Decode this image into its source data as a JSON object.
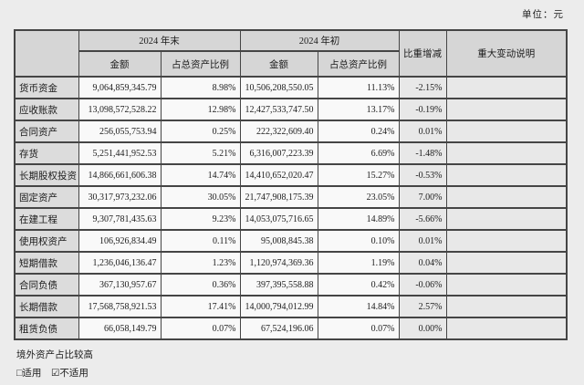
{
  "unit_label": "单位：元",
  "colors": {
    "page_bg": "#ececec",
    "header_bg": "#d6d6d6",
    "label_cell_bg": "#dcdcdc",
    "shaded_cell_bg": "#e8e8e8",
    "numeric_cell_bg": "#f9f9f9",
    "border": "#454545"
  },
  "table": {
    "header": {
      "period_end": "2024 年末",
      "period_start": "2024 年初",
      "amount": "金额",
      "ratio": "占总资产比例",
      "change": "比重增减",
      "explanation": "重大变动说明"
    },
    "rows": [
      {
        "label": "货币资金",
        "end_amount": "9,064,859,345.79",
        "end_ratio": "8.98%",
        "start_amount": "10,506,208,550.05",
        "start_ratio": "11.13%",
        "change": "-2.15%",
        "note": ""
      },
      {
        "label": "应收账款",
        "end_amount": "13,098,572,528.22",
        "end_ratio": "12.98%",
        "start_amount": "12,427,533,747.50",
        "start_ratio": "13.17%",
        "change": "-0.19%",
        "note": ""
      },
      {
        "label": "合同资产",
        "end_amount": "256,055,753.94",
        "end_ratio": "0.25%",
        "start_amount": "222,322,609.40",
        "start_ratio": "0.24%",
        "change": "0.01%",
        "note": ""
      },
      {
        "label": "存货",
        "end_amount": "5,251,441,952.53",
        "end_ratio": "5.21%",
        "start_amount": "6,316,007,223.39",
        "start_ratio": "6.69%",
        "change": "-1.48%",
        "note": ""
      },
      {
        "label": "长期股权投资",
        "end_amount": "14,866,661,606.38",
        "end_ratio": "14.74%",
        "start_amount": "14,410,652,020.47",
        "start_ratio": "15.27%",
        "change": "-0.53%",
        "note": ""
      },
      {
        "label": "固定资产",
        "end_amount": "30,317,973,232.06",
        "end_ratio": "30.05%",
        "start_amount": "21,747,908,175.39",
        "start_ratio": "23.05%",
        "change": "7.00%",
        "note": ""
      },
      {
        "label": "在建工程",
        "end_amount": "9,307,781,435.63",
        "end_ratio": "9.23%",
        "start_amount": "14,053,075,716.65",
        "start_ratio": "14.89%",
        "change": "-5.66%",
        "note": ""
      },
      {
        "label": "使用权资产",
        "end_amount": "106,926,834.49",
        "end_ratio": "0.11%",
        "start_amount": "95,008,845.38",
        "start_ratio": "0.10%",
        "change": "0.01%",
        "note": ""
      },
      {
        "label": "短期借款",
        "end_amount": "1,236,046,136.47",
        "end_ratio": "1.23%",
        "start_amount": "1,120,974,369.36",
        "start_ratio": "1.19%",
        "change": "0.04%",
        "note": ""
      },
      {
        "label": "合同负债",
        "end_amount": "367,130,957.67",
        "end_ratio": "0.36%",
        "start_amount": "397,395,558.88",
        "start_ratio": "0.42%",
        "change": "-0.06%",
        "note": ""
      },
      {
        "label": "长期借款",
        "end_amount": "17,568,758,921.53",
        "end_ratio": "17.41%",
        "start_amount": "14,000,794,012.99",
        "start_ratio": "14.84%",
        "change": "2.57%",
        "note": ""
      },
      {
        "label": "租赁负债",
        "end_amount": "66,058,149.79",
        "end_ratio": "0.07%",
        "start_amount": "67,524,196.06",
        "start_ratio": "0.07%",
        "change": "0.00%",
        "note": ""
      }
    ]
  },
  "footer": {
    "overseas_note": "境外资产占比较高",
    "applicable": "□适用",
    "not_applicable": "☑不适用"
  }
}
